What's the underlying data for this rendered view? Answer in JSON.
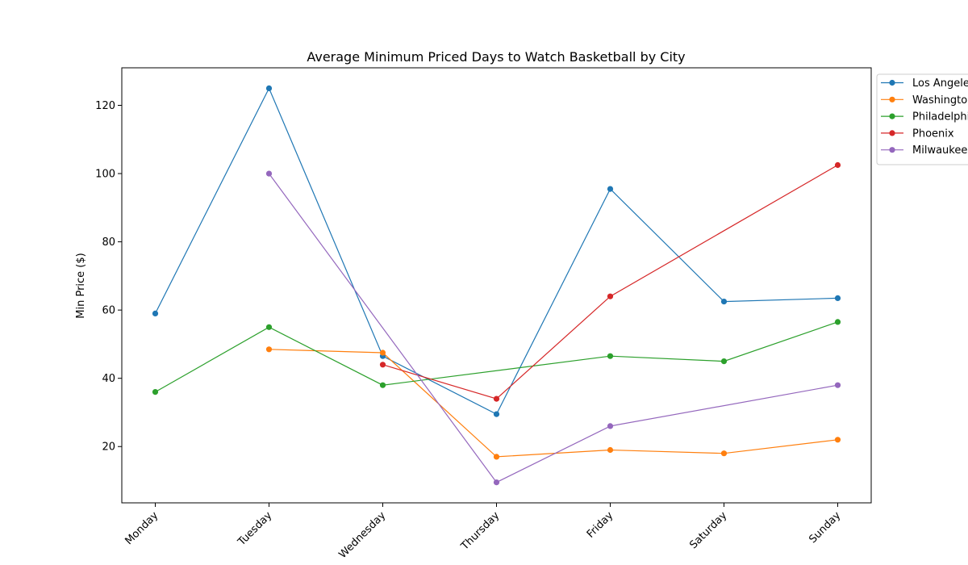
{
  "chart_data": {
    "type": "line",
    "title": "Average Minimum Priced Days to Watch Basketball by City",
    "xlabel": "",
    "ylabel": "Min Price ($)",
    "categories": [
      "Monday",
      "Tuesday",
      "Wednesday",
      "Thursday",
      "Friday",
      "Saturday",
      "Sunday"
    ],
    "ylim": [
      3.5,
      131
    ],
    "yticks": [
      20,
      40,
      60,
      80,
      100,
      120
    ],
    "grid": false,
    "legend_position": "outside-top-right",
    "series": [
      {
        "name": "Los Angeles",
        "color": "#1f77b4",
        "values": [
          59,
          125,
          46.5,
          29.5,
          95.5,
          62.5,
          63.5
        ]
      },
      {
        "name": "Washington",
        "color": "#ff7f0e",
        "values": [
          null,
          48.5,
          47.5,
          17,
          19,
          18,
          22
        ]
      },
      {
        "name": "Philadelphia",
        "color": "#2ca02c",
        "values": [
          36,
          55,
          38,
          null,
          46.5,
          45,
          56.5
        ]
      },
      {
        "name": "Phoenix",
        "color": "#d62728",
        "values": [
          null,
          null,
          44,
          34,
          64,
          null,
          102.5
        ]
      },
      {
        "name": "Milwaukee",
        "color": "#9467bd",
        "values": [
          null,
          100,
          null,
          9.5,
          26,
          null,
          38
        ]
      }
    ]
  }
}
